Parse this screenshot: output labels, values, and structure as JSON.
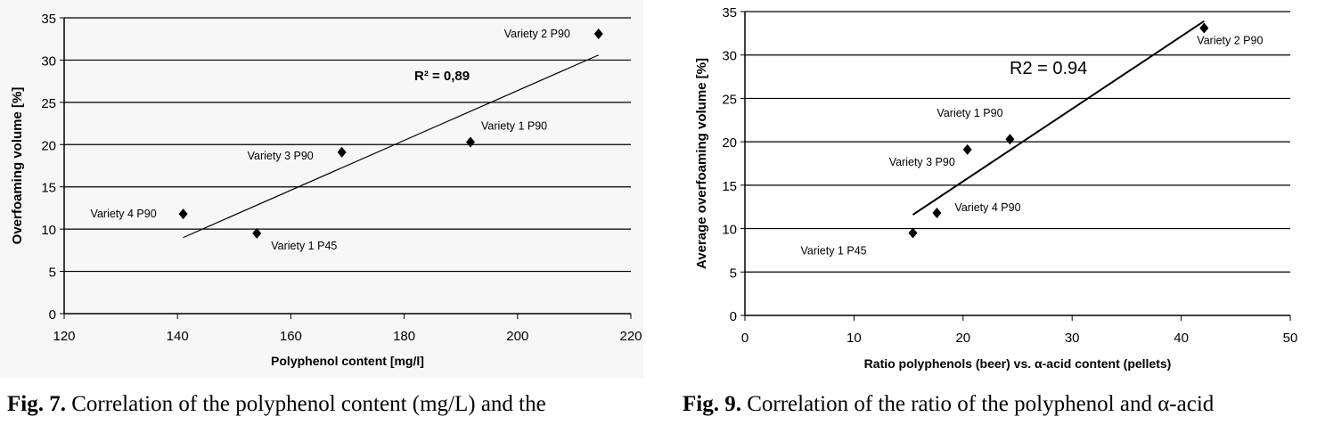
{
  "chart_data": [
    {
      "type": "scatter",
      "xlabel": "Polyphenol content [mg/l]",
      "ylabel": "Overfoaming volume [%]",
      "xlim": [
        120,
        220
      ],
      "ylim": [
        0,
        35
      ],
      "xticks": [
        120,
        140,
        160,
        180,
        200,
        220
      ],
      "yticks": [
        0,
        5,
        10,
        15,
        20,
        25,
        30,
        35
      ],
      "grid": "horizontal",
      "points": [
        {
          "label": "Variety 4 P90",
          "x": 141,
          "y": 11.8
        },
        {
          "label": "Variety 1 P45",
          "x": 154,
          "y": 9.5
        },
        {
          "label": "Variety 3 P90",
          "x": 169,
          "y": 19.1
        },
        {
          "label": "Variety 1 P90",
          "x": 191.7,
          "y": 20.3
        },
        {
          "label": "Variety 2 P90",
          "x": 214.3,
          "y": 33.1
        }
      ],
      "trendline": {
        "x": [
          141,
          214.3
        ],
        "y": [
          9,
          30.6
        ]
      },
      "annotation": "R² = 0,89",
      "caption_prefix": "Fig. 7.",
      "caption": " Correlation of the polyphenol content (mg/L) and the"
    },
    {
      "type": "scatter",
      "xlabel": "Ratio polyphenols (beer) vs. α-acid content (pellets)",
      "ylabel": "Average overfoaming volume  [%]",
      "xlim": [
        0,
        50
      ],
      "ylim": [
        0,
        35
      ],
      "xticks": [
        0,
        10,
        20,
        30,
        40,
        50
      ],
      "yticks": [
        0,
        5,
        10,
        15,
        20,
        25,
        30,
        35
      ],
      "grid": "horizontal",
      "points": [
        {
          "label": "Variety 1 P45",
          "x": 15.4,
          "y": 9.5
        },
        {
          "label": "Variety 4 P90",
          "x": 17.6,
          "y": 11.8
        },
        {
          "label": "Variety 3 P90",
          "x": 20.4,
          "y": 19.1
        },
        {
          "label": "Variety 1 P90",
          "x": 24.3,
          "y": 20.3
        },
        {
          "label": "Variety 2 P90",
          "x": 42.1,
          "y": 33.1
        }
      ],
      "trendline": {
        "x": [
          15.4,
          42.1
        ],
        "y": [
          11.6,
          33.9
        ]
      },
      "annotation": "R2 = 0.94",
      "caption_prefix": "Fig. 9.",
      "caption": " Correlation of the ratio of the polyphenol and α-acid"
    }
  ]
}
